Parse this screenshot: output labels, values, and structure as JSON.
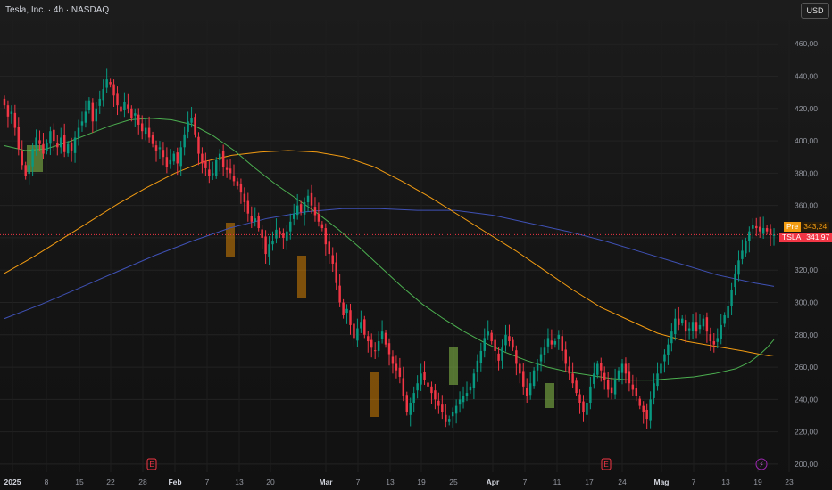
{
  "header": {
    "title": "Tesla, Inc. · 4h · NASDAQ",
    "currency_button": "USD"
  },
  "price_tags": {
    "pre": {
      "label": "Pre",
      "value": "343,24",
      "color": "#f39c12"
    },
    "last": {
      "label": "TSLA",
      "value": "341,97",
      "color": "#f23645"
    }
  },
  "events": {
    "earnings_marker": "E",
    "flash_marker": "⚡"
  },
  "chart_data": {
    "type": "candlestick",
    "timeframe": "4h",
    "symbol": "TSLA",
    "ylim": [
      195,
      475
    ],
    "y_ticks": [
      "460,00",
      "440,00",
      "420,00",
      "400,00",
      "380,00",
      "360,00",
      "340,00",
      "320,00",
      "300,00",
      "280,00",
      "260,00",
      "240,00",
      "220,00",
      "200,00"
    ],
    "y_tick_values": [
      460,
      440,
      420,
      400,
      380,
      360,
      340,
      320,
      300,
      280,
      260,
      240,
      220,
      200
    ],
    "x_ticks": [
      "2025",
      "8",
      "15",
      "22",
      "28",
      "Feb",
      "7",
      "13",
      "20",
      "Mar",
      "7",
      "13",
      "19",
      "25",
      "Apr",
      "7",
      "11",
      "17",
      "24",
      "Mag",
      "7",
      "13",
      "19",
      "23"
    ],
    "x_tick_bold": [
      "2025",
      "Feb",
      "Mar",
      "Apr",
      "Mag"
    ],
    "last_price": 341.97,
    "pre_price": 343.24,
    "colors": {
      "up": "#089981",
      "down": "#f23645",
      "ma_fast": "#4caf50",
      "ma_mid": "#f39c12",
      "ma_slow": "#3f51b5"
    },
    "closes": [
      422,
      415,
      418,
      408,
      395,
      385,
      378,
      385,
      395,
      402,
      398,
      392,
      399,
      406,
      400,
      396,
      402,
      393,
      398,
      394,
      402,
      408,
      412,
      418,
      425,
      412,
      420,
      426,
      432,
      438,
      435,
      428,
      422,
      418,
      424,
      420,
      414,
      417,
      410,
      406,
      408,
      402,
      398,
      394,
      396,
      390,
      384,
      388,
      392,
      386,
      396,
      404,
      412,
      414,
      404,
      392,
      386,
      383,
      378,
      380,
      388,
      392,
      384,
      382,
      380,
      375,
      372,
      368,
      362,
      355,
      350,
      352,
      346,
      340,
      330,
      336,
      338,
      345,
      342,
      340,
      344,
      350,
      355,
      360,
      356,
      362,
      366,
      360,
      354,
      350,
      346,
      336,
      330,
      324,
      312,
      300,
      292,
      296,
      286,
      278,
      284,
      288,
      280,
      276,
      272,
      270,
      276,
      282,
      274,
      268,
      262,
      258,
      254,
      242,
      232,
      238,
      244,
      250,
      256,
      252,
      248,
      244,
      240,
      236,
      232,
      226,
      228,
      232,
      236,
      240,
      242,
      244,
      248,
      256,
      264,
      270,
      278,
      282,
      276,
      270,
      264,
      272,
      280,
      276,
      272,
      262,
      256,
      248,
      242,
      250,
      258,
      262,
      268,
      272,
      278,
      274,
      276,
      280,
      270,
      262,
      256,
      250,
      244,
      238,
      232,
      238,
      248,
      256,
      262,
      258,
      252,
      246,
      244,
      252,
      258,
      262,
      256,
      250,
      246,
      242,
      236,
      232,
      228,
      240,
      250,
      256,
      262,
      268,
      274,
      282,
      290,
      286,
      290,
      282,
      284,
      288,
      282,
      286,
      290,
      282,
      276,
      274,
      278,
      286,
      292,
      298,
      308,
      318,
      326,
      332,
      338,
      344,
      348,
      346,
      344,
      346,
      344,
      342,
      341.97
    ],
    "ma_fast": [
      [
        0,
        397
      ],
      [
        6,
        394
      ],
      [
        12,
        395
      ],
      [
        18,
        399
      ],
      [
        24,
        404
      ],
      [
        30,
        409
      ],
      [
        36,
        413
      ],
      [
        42,
        414
      ],
      [
        48,
        413
      ],
      [
        54,
        410
      ],
      [
        60,
        403
      ],
      [
        66,
        394
      ],
      [
        72,
        383
      ],
      [
        78,
        373
      ],
      [
        84,
        364
      ],
      [
        90,
        355
      ],
      [
        96,
        345
      ],
      [
        102,
        334
      ],
      [
        108,
        322
      ],
      [
        114,
        310
      ],
      [
        120,
        299
      ],
      [
        126,
        290
      ],
      [
        132,
        282
      ],
      [
        138,
        275
      ],
      [
        144,
        269
      ],
      [
        150,
        264
      ],
      [
        156,
        260
      ],
      [
        162,
        257
      ],
      [
        168,
        255
      ],
      [
        174,
        253
      ],
      [
        180,
        252
      ],
      [
        186,
        252
      ],
      [
        192,
        253
      ],
      [
        198,
        254
      ],
      [
        204,
        256
      ],
      [
        210,
        259
      ],
      [
        214,
        263
      ],
      [
        217,
        268
      ],
      [
        219,
        272
      ],
      [
        221,
        277
      ]
    ],
    "ma_mid": [
      [
        0,
        318
      ],
      [
        10,
        328
      ],
      [
        20,
        339
      ],
      [
        30,
        350
      ],
      [
        40,
        361
      ],
      [
        50,
        371
      ],
      [
        60,
        380
      ],
      [
        70,
        387
      ],
      [
        80,
        391
      ],
      [
        90,
        393
      ],
      [
        100,
        394
      ],
      [
        110,
        393
      ],
      [
        120,
        390
      ],
      [
        130,
        384
      ],
      [
        140,
        375
      ],
      [
        150,
        365
      ],
      [
        160,
        354
      ],
      [
        170,
        343
      ],
      [
        180,
        332
      ],
      [
        190,
        320
      ],
      [
        200,
        308
      ],
      [
        210,
        297
      ],
      [
        220,
        289
      ],
      [
        230,
        281
      ],
      [
        240,
        276
      ],
      [
        250,
        273
      ],
      [
        260,
        270
      ],
      [
        266,
        268
      ],
      [
        269,
        267
      ],
      [
        271,
        267.5
      ]
    ],
    "ma_slow": [
      [
        0,
        290
      ],
      [
        20,
        299
      ],
      [
        40,
        309
      ],
      [
        60,
        319
      ],
      [
        80,
        329
      ],
      [
        100,
        338
      ],
      [
        120,
        346
      ],
      [
        140,
        352
      ],
      [
        160,
        356
      ],
      [
        180,
        358
      ],
      [
        200,
        358
      ],
      [
        220,
        357
      ],
      [
        240,
        357
      ],
      [
        260,
        354
      ],
      [
        280,
        349
      ],
      [
        300,
        344
      ],
      [
        320,
        338
      ],
      [
        340,
        331
      ],
      [
        360,
        324
      ],
      [
        380,
        317
      ],
      [
        400,
        312
      ],
      [
        410,
        310
      ]
    ]
  }
}
